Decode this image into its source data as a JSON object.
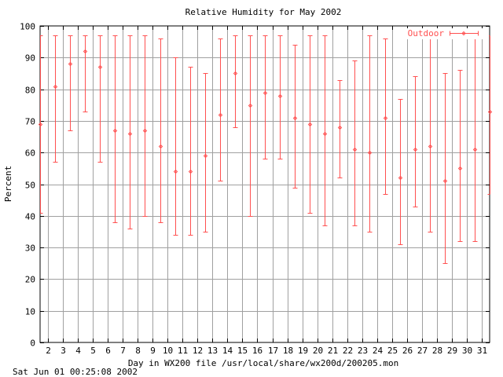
{
  "chart_data": {
    "type": "errorbar",
    "title": "Relative Humidity for May 2002",
    "xlabel": "Day in WX200 file /usr/local/share/wx200d/200205.mon",
    "ylabel": "Percent",
    "xlim": [
      1.5,
      31.5
    ],
    "ylim": [
      0,
      100
    ],
    "x_ticks": [
      2,
      3,
      4,
      5,
      6,
      7,
      8,
      9,
      10,
      11,
      12,
      13,
      14,
      15,
      16,
      17,
      18,
      19,
      20,
      21,
      22,
      23,
      24,
      25,
      26,
      27,
      28,
      29,
      30,
      31
    ],
    "y_ticks": [
      0,
      10,
      20,
      30,
      40,
      50,
      60,
      70,
      80,
      90,
      100
    ],
    "grid": true,
    "legend_position": "top-right",
    "series": [
      {
        "name": "Outdoor",
        "color": "#ff5050",
        "x": [
          1.5,
          2.5,
          3.5,
          4.5,
          5.5,
          6.5,
          7.5,
          8.5,
          9.5,
          10.5,
          11.5,
          12.5,
          13.5,
          14.5,
          15.5,
          16.5,
          17.5,
          18.5,
          19.5,
          20.5,
          21.5,
          22.5,
          23.5,
          24.5,
          25.5,
          26.5,
          27.5,
          28.5,
          29.5,
          30.5,
          31.5
        ],
        "mean": [
          69,
          81,
          88,
          92,
          87,
          67,
          66,
          67,
          62,
          54,
          54,
          59,
          72,
          85,
          75,
          79,
          78,
          71,
          69,
          66,
          68,
          61,
          60,
          71,
          52,
          61,
          62,
          51,
          55,
          61,
          73
        ],
        "min": [
          41,
          57,
          67,
          73,
          57,
          38,
          36,
          40,
          38,
          34,
          34,
          35,
          51,
          68,
          40,
          58,
          58,
          49,
          41,
          37,
          52,
          37,
          35,
          47,
          31,
          43,
          35,
          25,
          32,
          32,
          47
        ],
        "max": [
          97,
          97,
          97,
          97,
          97,
          97,
          97,
          97,
          96,
          90,
          87,
          85,
          96,
          97,
          97,
          97,
          97,
          94,
          97,
          97,
          83,
          89,
          97,
          96,
          77,
          84,
          97,
          85,
          86,
          97,
          97
        ]
      }
    ]
  },
  "footer_timestamp": "Sat Jun 01 00:25:08 2002"
}
